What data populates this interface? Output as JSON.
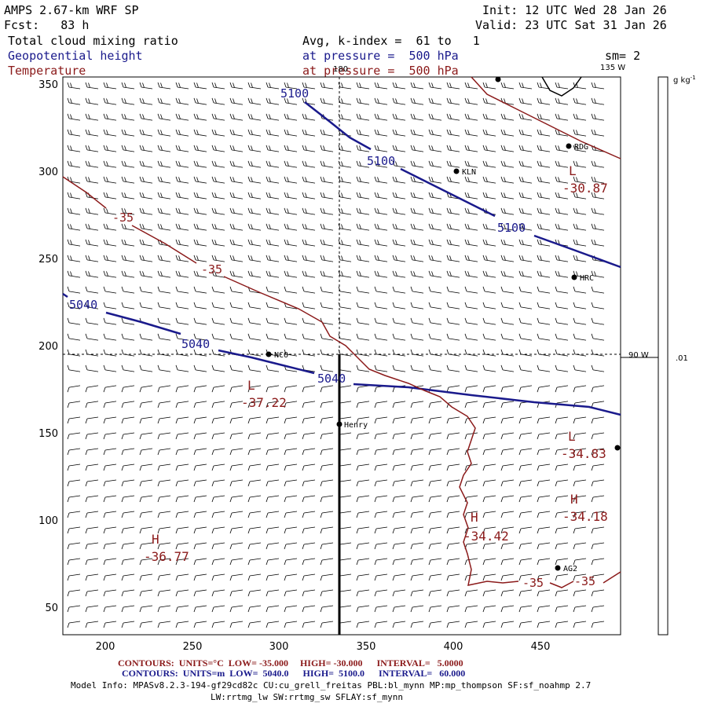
{
  "header": {
    "model": "AMPS 2.67-km WRF SP",
    "forecast": "Fcst:   83 h",
    "init": "Init: 12 UTC Wed 28 Jan 26",
    "valid": "Valid: 23 UTC Sat 31 Jan 26",
    "field1": "Total cloud mixing ratio",
    "field1_desc": "Avg, k-index =  61 to   1",
    "field2": "Geopotential height",
    "field2_desc": "at pressure =  500 hPa",
    "field3": "Temperature",
    "field3_desc": "at pressure =  500 hPa",
    "smoothing": "sm= 2"
  },
  "axes": {
    "x_ticks": [
      "200",
      "250",
      "300",
      "350",
      "400",
      "450"
    ],
    "y_ticks": [
      "350",
      "300",
      "250",
      "200",
      "150",
      "100",
      "50"
    ],
    "lon_label_180": "180",
    "lon_label_135": "135 W",
    "lon_label_90": "90 W"
  },
  "colorbar": {
    "unit": "g kg",
    "unit_sup": "-1",
    "tick": ".01"
  },
  "stations": [
    {
      "label": "RDG"
    },
    {
      "label": "KLN"
    },
    {
      "label": "HRC"
    },
    {
      "label": "NCO"
    },
    {
      "label": "Henry"
    },
    {
      "label": "AG2"
    }
  ],
  "height_labels": [
    "5100",
    "5100",
    "5100",
    "5040",
    "5040",
    "5040"
  ],
  "temp_labels": [
    "-35",
    "-35",
    "-35",
    "-35"
  ],
  "extrema": [
    {
      "type": "L",
      "value": "-30.87"
    },
    {
      "type": "L",
      "value": "-37.22"
    },
    {
      "type": "L",
      "value": "-34.83"
    },
    {
      "type": "H",
      "value": "-34.18"
    },
    {
      "type": "H",
      "value": "-34.42"
    },
    {
      "type": "H",
      "value": "-36.77"
    }
  ],
  "footer": {
    "temp_contours": "CONTOURS:  UNITS=°C  LOW= -35.000     HIGH= -30.000      INTERVAL=   5.0000",
    "height_contours": "CONTOURS:  UNITS=m  LOW=  5040.0      HIGH=  5100.0      INTERVAL=   60.000",
    "model_info": "Model Info: MPASv8.2.3-194-gf29cd82c CU:cu_grell_freitas PBL:bl_mynn MP:mp_thompson SF:sf_noahmp 2.7",
    "model_info2": "LW:rrtmg_lw SW:rrtmg_sw SFLAY:sf_mynn"
  },
  "colors": {
    "height_contour": "#1a1a8c",
    "temp_contour": "#8b1a1a",
    "barbs": "#000000"
  }
}
